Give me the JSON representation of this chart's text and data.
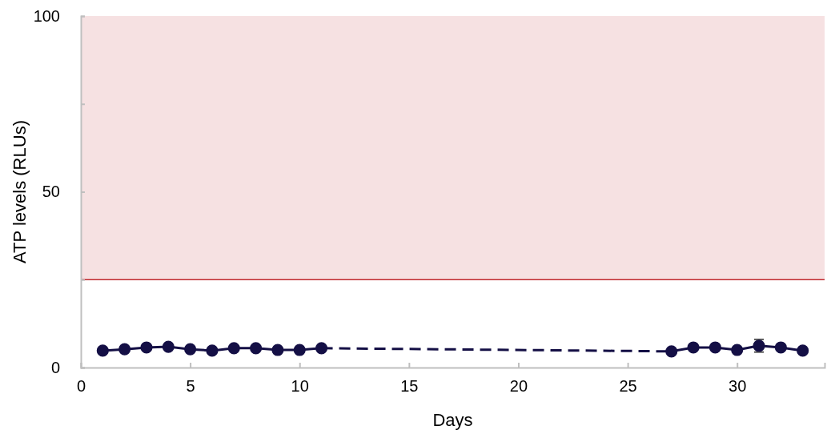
{
  "chart_data": {
    "type": "line",
    "xlabel": "Days",
    "ylabel": "ATP levels (RLUs)",
    "xlim": [
      0,
      34
    ],
    "xticks": [
      0,
      5,
      10,
      15,
      20,
      25,
      30
    ],
    "ylim": [
      0,
      100
    ],
    "yticks": [
      0,
      {
        "value": 25,
        "label": null
      },
      50,
      {
        "value": 75,
        "label": null
      },
      100
    ],
    "marker": "circle",
    "series": [
      {
        "color": "#140f45",
        "line_style": "solid",
        "x": [
          1,
          2,
          3,
          4,
          5,
          6,
          7,
          8,
          9,
          10,
          11
        ],
        "values": [
          4.8,
          5.2,
          5.7,
          5.9,
          5.2,
          4.8,
          5.5,
          5.5,
          5.0,
          5.0,
          5.5
        ]
      },
      {
        "color": "#140f45",
        "line_style": "solid",
        "x": [
          27,
          28,
          29,
          30,
          31,
          32,
          33
        ],
        "values": [
          4.6,
          5.7,
          5.7,
          5.0,
          6.2,
          5.7,
          4.8
        ],
        "errors": [
          null,
          null,
          null,
          null,
          1.8,
          null,
          null
        ]
      },
      {
        "color": "#140f45",
        "line_style": "dashed",
        "marker": "none",
        "x": [
          11,
          27
        ],
        "values": [
          5.5,
          4.6
        ]
      }
    ],
    "bands": [
      {
        "axis": "y",
        "from": 25,
        "to": 100,
        "color": "#f6e1e2"
      }
    ],
    "ref_lines": [
      {
        "axis": "y",
        "value": 25,
        "color": "#c0282d"
      }
    ]
  }
}
